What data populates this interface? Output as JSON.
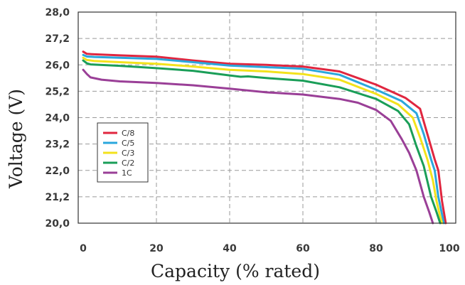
{
  "chart_data": {
    "type": "line",
    "title": "",
    "xlabel": "Capacity (% rated)",
    "ylabel": "Voltage (V)",
    "xlim": [
      0,
      100
    ],
    "ylim": [
      20.0,
      28.0
    ],
    "x_ticks": [
      "0",
      "20",
      "40",
      "60",
      "80",
      "100"
    ],
    "y_ticks": [
      "28,0",
      "27,2",
      "26,0",
      "25,2",
      "24,0",
      "23,2",
      "22,0",
      "21,2",
      "20,0"
    ],
    "grid": true,
    "legend_position": "left",
    "series": [
      {
        "name": "C/8",
        "color": "#e0263f",
        "x": [
          0,
          1,
          3,
          10,
          20,
          30,
          40,
          50,
          60,
          70,
          80,
          88,
          92,
          94,
          96,
          97,
          98,
          98.5,
          99
        ],
        "y": [
          26.6,
          26.5,
          26.48,
          26.43,
          26.37,
          26.2,
          26.05,
          26.0,
          25.95,
          25.8,
          25.4,
          24.9,
          24.4,
          23.5,
          22.5,
          22.0,
          21.0,
          20.5,
          20.0
        ]
      },
      {
        "name": "C/5",
        "color": "#2aa7dc",
        "x": [
          0,
          1,
          3,
          10,
          20,
          30,
          40,
          50,
          60,
          70,
          80,
          87,
          91,
          93,
          95,
          96,
          97,
          98,
          98.5
        ],
        "y": [
          26.45,
          26.38,
          26.36,
          26.32,
          26.27,
          26.12,
          25.98,
          25.93,
          25.88,
          25.7,
          25.25,
          24.75,
          24.2,
          23.5,
          22.5,
          22.0,
          21.2,
          20.4,
          20.0
        ]
      },
      {
        "name": "C/3",
        "color": "#f3e21c",
        "x": [
          0,
          1,
          3,
          10,
          20,
          30,
          40,
          50,
          60,
          70,
          80,
          86,
          90,
          92,
          94,
          95.5,
          96.5,
          97.5,
          98
        ],
        "y": [
          26.32,
          26.22,
          26.18,
          26.12,
          26.05,
          25.95,
          25.85,
          25.8,
          25.72,
          25.55,
          25.08,
          24.6,
          24.0,
          23.4,
          22.5,
          21.7,
          21.0,
          20.3,
          20.0
        ]
      },
      {
        "name": "C/2",
        "color": "#1a9e58",
        "x": [
          0,
          1,
          2,
          10,
          20,
          30,
          40,
          43,
          45,
          50,
          60,
          70,
          80,
          86,
          89,
          91,
          93,
          95,
          96.5,
          97.5
        ],
        "y": [
          26.2,
          26.07,
          26.02,
          25.97,
          25.9,
          25.82,
          25.68,
          25.64,
          25.65,
          25.6,
          25.52,
          25.32,
          24.85,
          24.3,
          23.8,
          23.1,
          22.2,
          21.2,
          20.5,
          20.0
        ]
      },
      {
        "name": "1C",
        "color": "#9a3f97",
        "x": [
          0,
          1,
          2,
          5,
          10,
          20,
          30,
          40,
          50,
          60,
          65,
          70,
          75,
          80,
          84,
          87,
          89,
          91,
          93,
          94.5,
          95.5
        ],
        "y": [
          25.85,
          25.72,
          25.62,
          25.55,
          25.5,
          25.45,
          25.38,
          25.28,
          25.15,
          25.05,
          24.95,
          24.85,
          24.68,
          24.35,
          23.9,
          23.35,
          22.8,
          22.0,
          21.2,
          20.5,
          20.0
        ]
      }
    ]
  }
}
